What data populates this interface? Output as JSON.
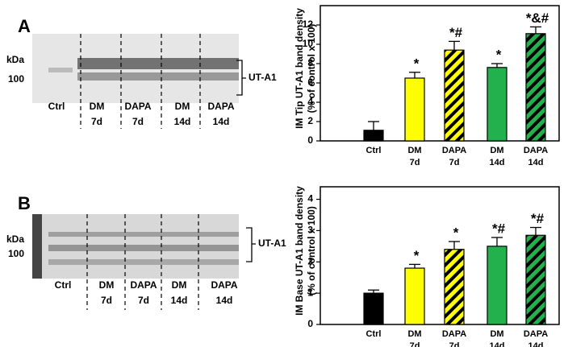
{
  "chart_data": [
    {
      "type": "bar",
      "ylabel": [
        "IM Tip UT-A1 band density",
        "(% of control x 100)"
      ],
      "categories": [
        [
          "Ctrl"
        ],
        [
          "DM",
          "7d"
        ],
        [
          "DAPA",
          "7d"
        ],
        [
          "DM",
          "14d"
        ],
        [
          "DAPA",
          "14d"
        ]
      ],
      "values": [
        1.1,
        6.5,
        9.4,
        7.6,
        11.1
      ],
      "errors": [
        0.9,
        0.6,
        0.9,
        0.4,
        0.7
      ],
      "annotations": [
        null,
        "*",
        "*#",
        "*",
        "*&#"
      ],
      "colors": [
        "#000000",
        "#ffff00",
        "#ffff00",
        "#22b14c",
        "#22b14c"
      ],
      "hatched": [
        false,
        false,
        true,
        false,
        true
      ],
      "ylim": [
        0,
        14
      ],
      "yticks": [
        0,
        2,
        4,
        6,
        8,
        10,
        12
      ]
    },
    {
      "type": "bar",
      "ylabel": [
        "IM Base UT-A1 band density",
        "(% of control x 100)"
      ],
      "categories": [
        [
          "Ctrl"
        ],
        [
          "DM",
          "7d"
        ],
        [
          "DAPA",
          "7d"
        ],
        [
          "DM",
          "14d"
        ],
        [
          "DAPA",
          "14d"
        ]
      ],
      "values": [
        1.0,
        1.8,
        2.4,
        2.5,
        2.85
      ],
      "errors": [
        0.1,
        0.12,
        0.25,
        0.28,
        0.25
      ],
      "annotations": [
        null,
        "*",
        "*",
        "*#",
        "*#"
      ],
      "colors": [
        "#000000",
        "#ffff00",
        "#ffff00",
        "#22b14c",
        "#22b14c"
      ],
      "hatched": [
        false,
        false,
        true,
        false,
        true
      ],
      "ylim": [
        0,
        4.4
      ],
      "yticks": [
        0,
        1,
        2,
        3,
        4
      ]
    }
  ],
  "blots": [
    {
      "panel": "A",
      "unit": "kDa",
      "marker": "100",
      "band": "UT-A1",
      "lanes": [
        [
          "Ctrl"
        ],
        [
          "DM",
          "7d"
        ],
        [
          "DAPA",
          "7d"
        ],
        [
          "DM",
          "14d"
        ],
        [
          "DAPA",
          "14d"
        ]
      ]
    },
    {
      "panel": "B",
      "unit": "kDa",
      "marker": "100",
      "band": "UT-A1",
      "lanes": [
        [
          "Ctrl"
        ],
        [
          "DM",
          "7d"
        ],
        [
          "DAPA",
          "7d"
        ],
        [
          "DM",
          "14d"
        ],
        [
          "DAPA",
          "14d"
        ]
      ]
    }
  ]
}
